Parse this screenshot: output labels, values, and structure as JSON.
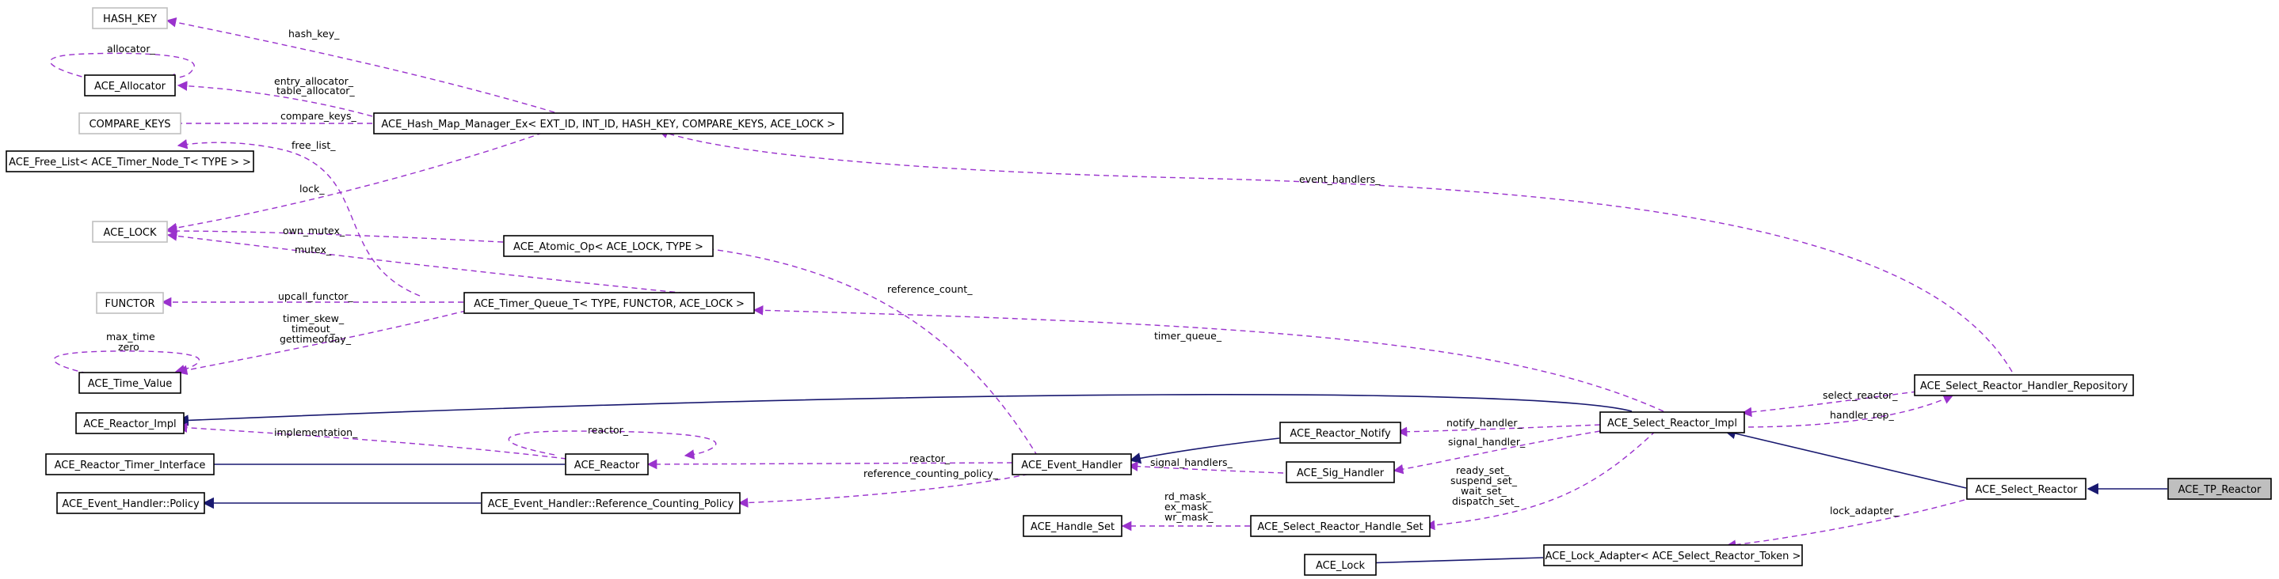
{
  "colors": {
    "usage_edge": "#9a32cd",
    "inheritance_edge": "#191970",
    "focus_fill": "#bfbfbf",
    "undocumented_border": "#bfbfbf"
  },
  "nodes": {
    "hash_key": "HASH_KEY",
    "allocator": "ACE_Allocator",
    "compare_keys": "COMPARE_KEYS",
    "hash_map": "ACE_Hash_Map_Manager_Ex< EXT_ID, INT_ID, HASH_KEY, COMPARE_KEYS, ACE_LOCK >",
    "free_list": "ACE_Free_List< ACE_Timer_Node_T< TYPE > >",
    "ace_lock_tpl": "ACE_LOCK",
    "atomic_op": "ACE_Atomic_Op< ACE_LOCK, TYPE >",
    "functor": "FUNCTOR",
    "timer_queue": "ACE_Timer_Queue_T< TYPE, FUNCTOR, ACE_LOCK >",
    "time_value": "ACE_Time_Value",
    "reactor_impl": "ACE_Reactor_Impl",
    "reactor_timer_interface": "ACE_Reactor_Timer_Interface",
    "reactor": "ACE_Reactor",
    "event_handler": "ACE_Event_Handler",
    "reactor_notify": "ACE_Reactor_Notify",
    "sig_handler": "ACE_Sig_Handler",
    "eh_policy": "ACE_Event_Handler::Policy",
    "rc_policy": "ACE_Event_Handler::Reference_Counting_Policy",
    "handle_set": "ACE_Handle_Set",
    "sr_handle_set": "ACE_Select_Reactor_Handle_Set",
    "select_reactor_impl": "ACE_Select_Reactor_Impl",
    "handler_repository": "ACE_Select_Reactor_Handler_Repository",
    "select_reactor": "ACE_Select_Reactor",
    "tp_reactor": "ACE_TP_Reactor",
    "ace_lock": "ACE_Lock",
    "lock_adapter": "ACE_Lock_Adapter< ACE_Select_Reactor_Token >"
  },
  "edge_labels": {
    "hash_key": "hash_key_",
    "allocator_self": "allocator_",
    "entry_allocator": "entry_allocator_",
    "table_allocator": "table_allocator_",
    "compare_keys": "compare_keys_",
    "free_list": "free_list_",
    "lock": "lock_",
    "own_mutex": "own_mutex_",
    "mutex": "mutex_",
    "upcall_functor": "upcall_functor_",
    "timer_skew": "timer_skew_",
    "timeout": "timeout_",
    "gettimeofday": "gettimeofday_",
    "max_time": "max_time",
    "zero": "zero",
    "event_handlers": "event_handlers_",
    "reference_count": "reference_count_",
    "timer_queue": "timer_queue_",
    "select_reactor": "select_reactor_",
    "handler_rep": "handler_rep_",
    "notify_handler": "notify_handler_",
    "signal_handler": "signal_handler_",
    "reactor_self": "reactor_",
    "implementation": "implementation_",
    "reactor": "reactor_",
    "reference_counting_policy": "reference_counting_policy_",
    "signal_handlers": "signal_handlers_",
    "ready_set": "ready_set_",
    "suspend_set": "suspend_set_",
    "wait_set": "wait_set_",
    "dispatch_set": "dispatch_set_",
    "rd_mask": "rd_mask_",
    "ex_mask": "ex_mask_",
    "wr_mask": "wr_mask_",
    "lock_adapter": "lock_adapter_"
  }
}
